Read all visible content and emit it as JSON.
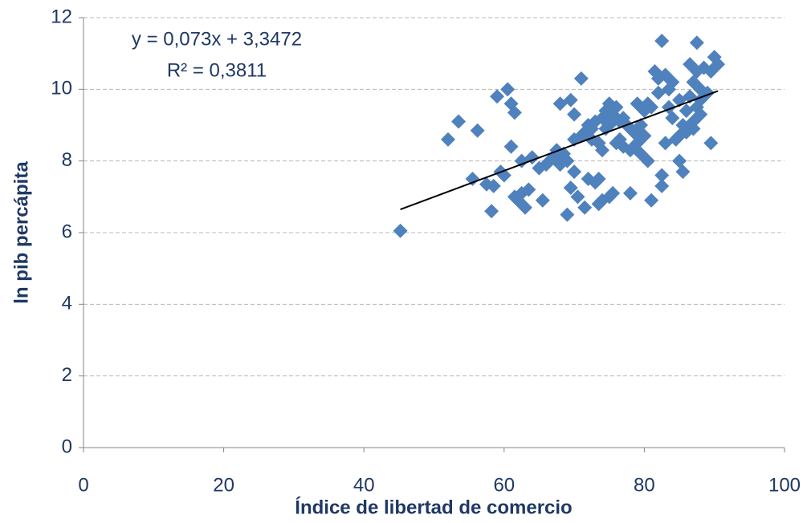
{
  "chart_data": {
    "type": "scatter",
    "x_label": "Índice de libertad de comercio",
    "y_label": "ln pib percápita",
    "xlim": [
      0,
      100
    ],
    "xticks": [
      0,
      20,
      40,
      60,
      80,
      100
    ],
    "ylim": [
      0,
      12
    ],
    "yticks": [
      0,
      2,
      4,
      6,
      8,
      10,
      12
    ],
    "grid": true,
    "color": "#4f81bd",
    "trendline": {
      "equation": "y = 0,073x + 3,3472",
      "r2": "R² = 0,3811",
      "slope": 0.073,
      "intercept": 3.3472,
      "color": "#000000"
    },
    "x": [
      45.2,
      52,
      53.5,
      55.5,
      56.2,
      57.5,
      58.2,
      58.5,
      59,
      59.5,
      60,
      60.5,
      61,
      61,
      61.5,
      61.5,
      62,
      62.5,
      62.5,
      63,
      63.5,
      64,
      65,
      65.5,
      66,
      66.5,
      67,
      67.5,
      68,
      68,
      68.5,
      69,
      69,
      69.5,
      69.5,
      70,
      70,
      70,
      70.5,
      71,
      71,
      71.5,
      71.5,
      72,
      72,
      72.5,
      72.5,
      73,
      73,
      73.5,
      73.5,
      73.5,
      74,
      74,
      74,
      74.5,
      74.5,
      75,
      75,
      75,
      75.5,
      75.5,
      76,
      76,
      76.5,
      76.5,
      77,
      77,
      77.5,
      78,
      78,
      78.5,
      79,
      79,
      79.5,
      79.5,
      80,
      80,
      80.5,
      80.5,
      81,
      81,
      81.5,
      82,
      82,
      82.5,
      82.5,
      82.5,
      83,
      83,
      83.5,
      83.5,
      84,
      84,
      84.5,
      85,
      85,
      85,
      85.5,
      85.5,
      86,
      86,
      86.5,
      86.5,
      87,
      87,
      87,
      87.5,
      87.5,
      87.5,
      88,
      88,
      88,
      88.5,
      89,
      89.5,
      90,
      90.5,
      89.5
    ],
    "y": [
      6.05,
      8.6,
      9.1,
      7.5,
      8.85,
      7.35,
      6.6,
      7.3,
      9.8,
      7.7,
      7.6,
      10.0,
      8.4,
      9.6,
      9.35,
      7.0,
      6.9,
      7.1,
      8.0,
      6.7,
      7.2,
      8.1,
      7.8,
      6.9,
      7.9,
      8.0,
      8.1,
      8.3,
      7.9,
      9.6,
      8.2,
      8.0,
      6.5,
      9.7,
      7.25,
      8.6,
      7.7,
      9.3,
      7.0,
      10.3,
      8.7,
      8.8,
      6.7,
      9.0,
      7.5,
      8.9,
      8.6,
      7.4,
      9.1,
      8.5,
      6.8,
      7.5,
      9.2,
      8.3,
      6.9,
      9.4,
      8.9,
      9.6,
      9.0,
      7.0,
      7.1,
      9.3,
      9.5,
      8.5,
      9.1,
      8.6,
      9.2,
      8.4,
      9.0,
      7.1,
      8.3,
      8.8,
      9.6,
      8.5,
      8.2,
      9.0,
      8.7,
      9.4,
      8.0,
      9.6,
      6.9,
      9.5,
      10.5,
      9.9,
      10.3,
      11.35,
      7.3,
      7.6,
      10.4,
      8.5,
      9.5,
      10.0,
      10.2,
      9.2,
      8.6,
      8.0,
      9.7,
      8.7,
      7.7,
      9.0,
      8.8,
      9.4,
      10.7,
      9.8,
      10.2,
      9.1,
      8.9,
      9.5,
      10.5,
      11.3,
      10.0,
      9.7,
      9.3,
      10.6,
      9.9,
      8.5,
      10.9,
      10.7,
      10.5
    ]
  }
}
